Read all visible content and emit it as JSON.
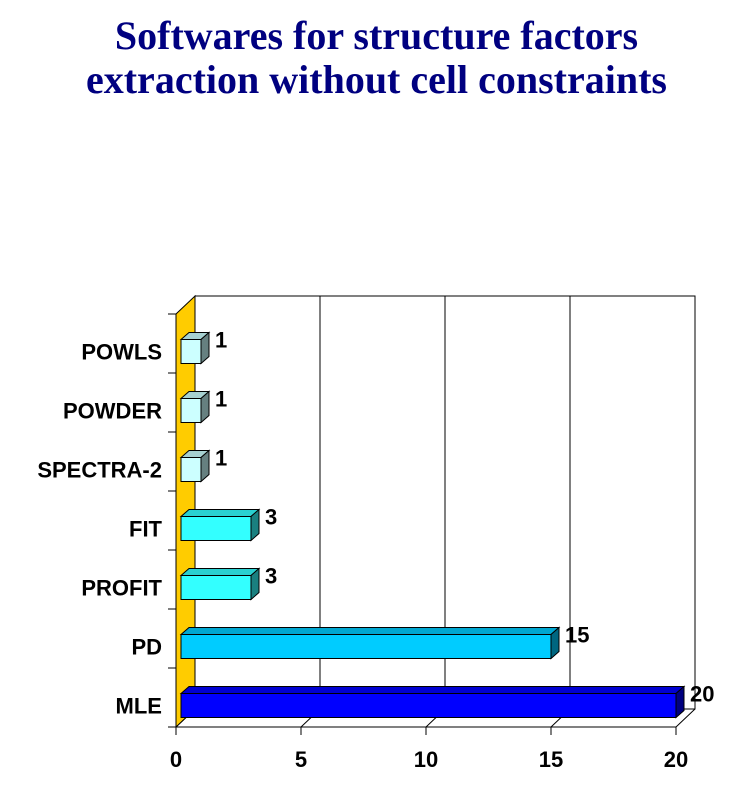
{
  "title_line1": "Softwares for structure factors",
  "title_line2": "extraction without cell constraints",
  "chart_data": {
    "type": "bar",
    "orientation": "horizontal",
    "style": "3d",
    "title": "Softwares for structure factors extraction without cell constraints",
    "categories": [
      "POWLS",
      "POWDER",
      "SPECTRA-2",
      "FIT",
      "PROFIT",
      "PD",
      "MLE"
    ],
    "values": [
      1,
      1,
      1,
      3,
      3,
      15,
      20
    ],
    "bar_colors": [
      "#ccffff",
      "#ccffff",
      "#ccffff",
      "#33ffff",
      "#33ffff",
      "#00ccff",
      "#0000ff"
    ],
    "xlim": [
      0,
      20
    ],
    "xticks": [
      0,
      5,
      10,
      15,
      20
    ],
    "grid": true,
    "wall_color": "#ffcc00",
    "data_labels": true
  }
}
